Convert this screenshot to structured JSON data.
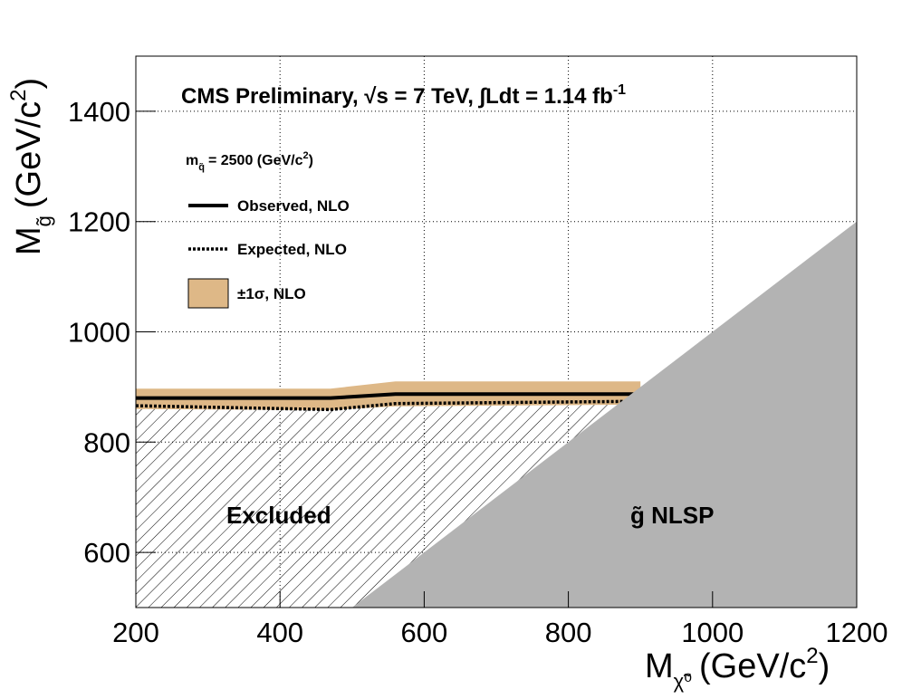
{
  "chart_data": {
    "type": "line",
    "title": "CMS Preliminary, √s = 7 TeV, ∫Ldt = 1.14 fb",
    "title_sup": "-1",
    "x_label": {
      "main": "M",
      "sub": "χ̃⁰",
      "unit": "(GeV/c",
      "sup": "2",
      "close": ")"
    },
    "y_label": {
      "main": "M",
      "sub": "g̃",
      "unit": "(GeV/c",
      "sup": "2",
      "close": ")"
    },
    "legend_header": {
      "main": "m",
      "sub": "q̃",
      "unit": "= 2500 (GeV/c",
      "sup": "2",
      "close": ")"
    },
    "xlim": [
      200,
      1200
    ],
    "ylim": [
      500,
      1500
    ],
    "xticks": [
      200,
      400,
      600,
      800,
      1000,
      1200
    ],
    "yticks": [
      600,
      800,
      1000,
      1200,
      1400
    ],
    "grid": true,
    "x": [
      200,
      470,
      560,
      900
    ],
    "series": [
      {
        "name": "Observed, NLO",
        "color": "#000000",
        "style": "solid",
        "values": [
          880,
          880,
          887,
          887
        ]
      },
      {
        "name": "Expected, NLO",
        "color": "#000000",
        "style": "dotted",
        "values": [
          866,
          859,
          870,
          874
        ]
      }
    ],
    "band": {
      "name": "±1σ, NLO",
      "color": "#deb887",
      "upper": [
        897,
        897,
        910,
        910
      ],
      "lower": [
        860,
        858,
        865,
        868
      ]
    },
    "nlsp_region": {
      "label": "g̃ NLSP",
      "color": "#b3b3b3",
      "x": [
        500,
        1200,
        1200
      ],
      "y": [
        500,
        1200,
        500
      ]
    },
    "excluded_label": "Excluded"
  }
}
